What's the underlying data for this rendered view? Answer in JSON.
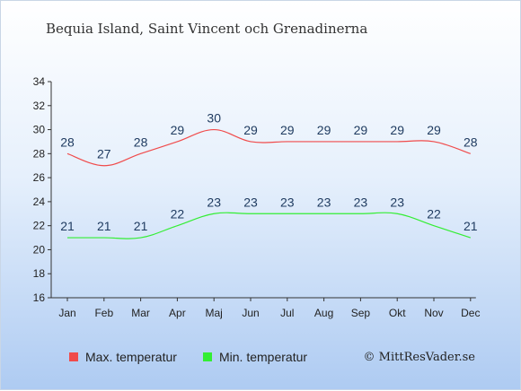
{
  "title": "Bequia Island, Saint Vincent och Grenadinerna",
  "credit": "© MittResVader.se",
  "chart_data": {
    "type": "line",
    "categories": [
      "Jan",
      "Feb",
      "Mar",
      "Apr",
      "Maj",
      "Jun",
      "Jul",
      "Aug",
      "Sep",
      "Okt",
      "Nov",
      "Dec"
    ],
    "ylim": [
      16,
      34
    ],
    "yticks": [
      16,
      18,
      20,
      22,
      24,
      26,
      28,
      30,
      32,
      34
    ],
    "legend_position": "bottom",
    "series": [
      {
        "name": "Max. temperatur",
        "color": "#f04b4b",
        "values": [
          28,
          27,
          28,
          29,
          30,
          29,
          29,
          29,
          29,
          29,
          29,
          28
        ]
      },
      {
        "name": "Min. temperatur",
        "color": "#33ee33",
        "values": [
          21,
          21,
          21,
          22,
          23,
          23,
          23,
          23,
          23,
          23,
          22,
          21
        ]
      }
    ]
  }
}
